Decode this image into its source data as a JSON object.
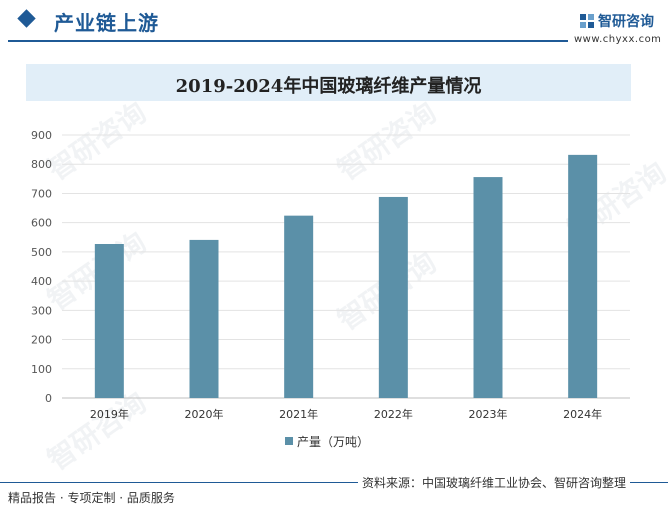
{
  "header": {
    "title": "产业链上游",
    "brand_name": "智研咨询",
    "brand_url": "www.chyxx.com"
  },
  "footer": {
    "left": "精品报告 · 专项定制 · 品质服务",
    "source": "资料来源：中国玻璃纤维工业协会、智研咨询整理"
  },
  "colors": {
    "bar": "#5b90a8",
    "accent": "#1f5a96",
    "title_band": "#e1eef8"
  },
  "watermark_text": "智研咨询",
  "chart_data": {
    "type": "bar",
    "title": "2019-2024年中国玻璃纤维产量情况",
    "categories": [
      "2019年",
      "2020年",
      "2021年",
      "2022年",
      "2023年",
      "2024年"
    ],
    "series": [
      {
        "name": "产量（万吨）",
        "values": [
          527,
          541,
          624,
          688,
          756,
          832
        ]
      }
    ],
    "yticks": [
      "0",
      "100",
      "200",
      "300",
      "400",
      "500",
      "600",
      "700",
      "800",
      "900"
    ],
    "ylim": [
      0,
      900
    ],
    "grid": true,
    "legend": "bottom"
  }
}
